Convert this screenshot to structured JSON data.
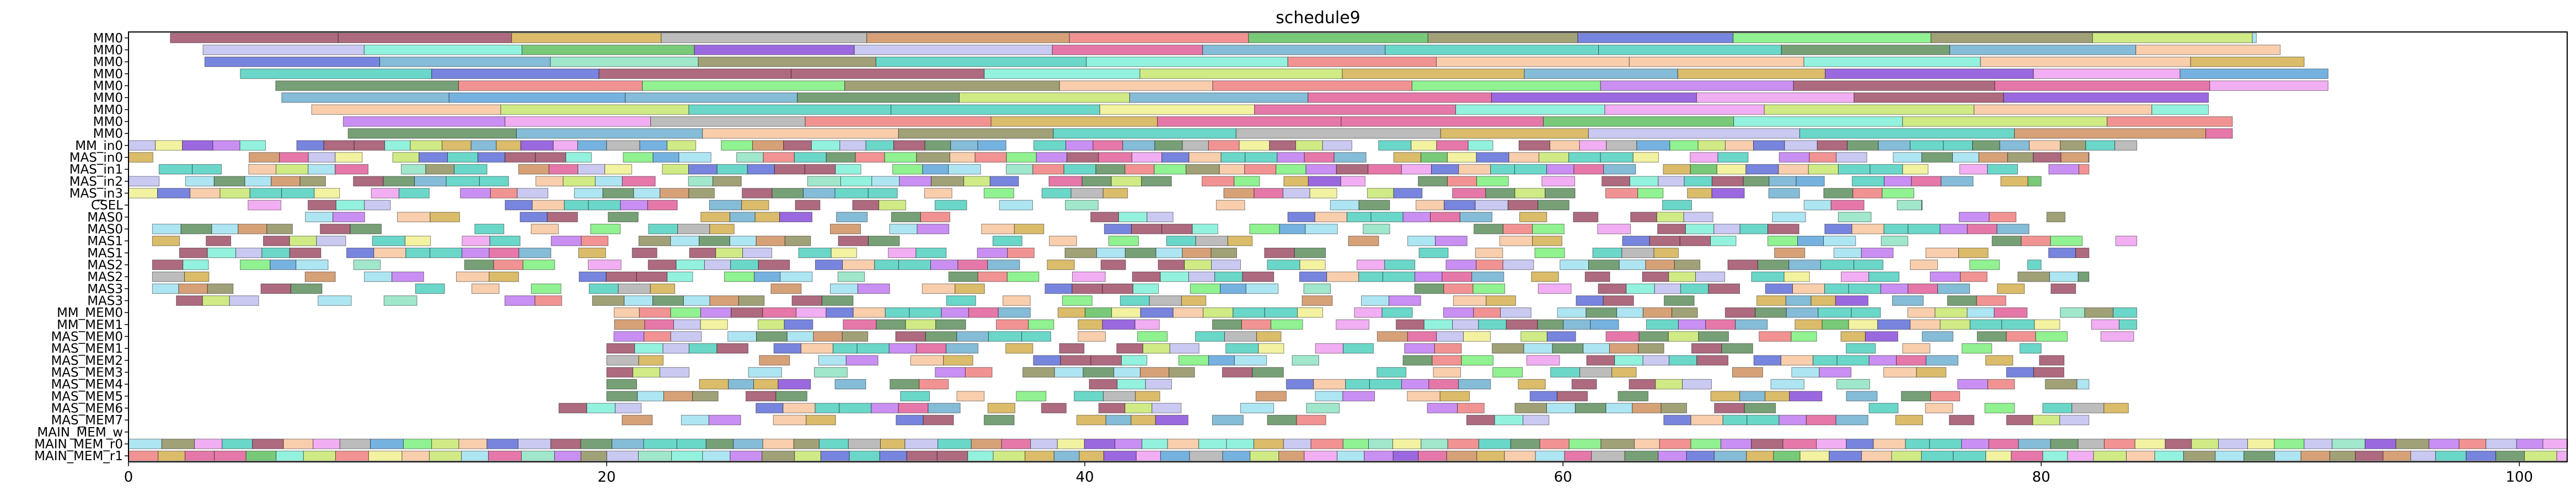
{
  "chart_data": {
    "type": "gantt",
    "title": "schedule9",
    "xlabel": "",
    "ylabel": "",
    "xlim": [
      0,
      102
    ],
    "xticks": [
      0,
      20,
      40,
      60,
      80,
      100
    ],
    "grid": false,
    "rows": [
      {
        "label": "MM0",
        "end": 89,
        "offset": 1,
        "density": 1.0
      },
      {
        "label": "MM0",
        "end": 90,
        "offset": 2,
        "density": 1.0
      },
      {
        "label": "MM0",
        "end": 91,
        "offset": 3,
        "density": 1.0
      },
      {
        "label": "MM0",
        "end": 92,
        "offset": 4,
        "density": 1.0
      },
      {
        "label": "MM0",
        "end": 92,
        "offset": 5,
        "density": 1.0
      },
      {
        "label": "MM0",
        "end": 87,
        "offset": 6,
        "density": 1.0
      },
      {
        "label": "MM0",
        "end": 87,
        "offset": 7,
        "density": 1.0
      },
      {
        "label": "MM0",
        "end": 88,
        "offset": 8,
        "density": 1.0
      },
      {
        "label": "MM0",
        "end": 88,
        "offset": 8,
        "density": 1.0
      },
      {
        "label": "MM_in0",
        "end": 84,
        "offset": 0,
        "density": 0.95
      },
      {
        "label": "MAS_in0",
        "end": 82,
        "offset": 0,
        "density": 0.85
      },
      {
        "label": "MAS_in1",
        "end": 82,
        "offset": 0,
        "density": 0.8
      },
      {
        "label": "MAS_in2",
        "end": 80,
        "offset": 0,
        "density": 0.75
      },
      {
        "label": "MAS_in3",
        "end": 76,
        "offset": 0,
        "density": 0.7
      },
      {
        "label": "CSEL",
        "end": 75,
        "offset": 5,
        "density": 0.55
      },
      {
        "label": "MAS0",
        "end": 81,
        "offset": 1,
        "density": 0.6
      },
      {
        "label": "MAS0",
        "end": 80,
        "offset": 1,
        "density": 0.65
      },
      {
        "label": "MAS1",
        "end": 84,
        "offset": 1,
        "density": 0.65
      },
      {
        "label": "MAS1",
        "end": 82,
        "offset": 1,
        "density": 0.65
      },
      {
        "label": "MAS2",
        "end": 80,
        "offset": 1,
        "density": 0.7
      },
      {
        "label": "MAS2",
        "end": 82,
        "offset": 1,
        "density": 0.65
      },
      {
        "label": "MAS3",
        "end": 82,
        "offset": 1,
        "density": 0.65
      },
      {
        "label": "MAS3",
        "end": 80,
        "offset": 2,
        "density": 0.6
      },
      {
        "label": "MM_MEM0",
        "end": 84,
        "offset": 19,
        "density": 0.8
      },
      {
        "label": "MM_MEM1",
        "end": 84,
        "offset": 19,
        "density": 0.75
      },
      {
        "label": "MAS_MEM0",
        "end": 84,
        "offset": 19,
        "density": 0.7
      },
      {
        "label": "MAS_MEM1",
        "end": 80,
        "offset": 20,
        "density": 0.65
      },
      {
        "label": "MAS_MEM2",
        "end": 82,
        "offset": 20,
        "density": 0.65
      },
      {
        "label": "MAS_MEM3",
        "end": 82,
        "offset": 20,
        "density": 0.6
      },
      {
        "label": "MAS_MEM4",
        "end": 82,
        "offset": 20,
        "density": 0.6
      },
      {
        "label": "MAS_MEM5",
        "end": 82,
        "offset": 20,
        "density": 0.6
      },
      {
        "label": "MAS_MEM6",
        "end": 84,
        "offset": 18,
        "density": 0.6
      },
      {
        "label": "MAS_MEM7",
        "end": 84,
        "offset": 18,
        "density": 0.6
      },
      {
        "label": "MAIN_MEM_w",
        "end": 0,
        "offset": 0,
        "density": 0.0
      },
      {
        "label": "MAIN_MEM_r0",
        "end": 102,
        "offset": 0,
        "density": 1.0
      },
      {
        "label": "MAIN_MEM_r1",
        "end": 102,
        "offset": 0,
        "density": 1.0
      }
    ],
    "palette": [
      "#5da5da",
      "#8fe3c3",
      "#60c060",
      "#7df07d",
      "#d4b050",
      "#8a4fd9",
      "#b0b0b0",
      "#f7c59f",
      "#5f8f5f",
      "#e0609a",
      "#a0e0f0",
      "#c07bf0",
      "#f08080",
      "#6070d8",
      "#c8e870",
      "#a05068",
      "#80f0d8",
      "#f0a0f0",
      "#d09060",
      "#c0c0f0",
      "#70b0d0",
      "#f0f090",
      "#909060",
      "#50d0c0"
    ]
  }
}
